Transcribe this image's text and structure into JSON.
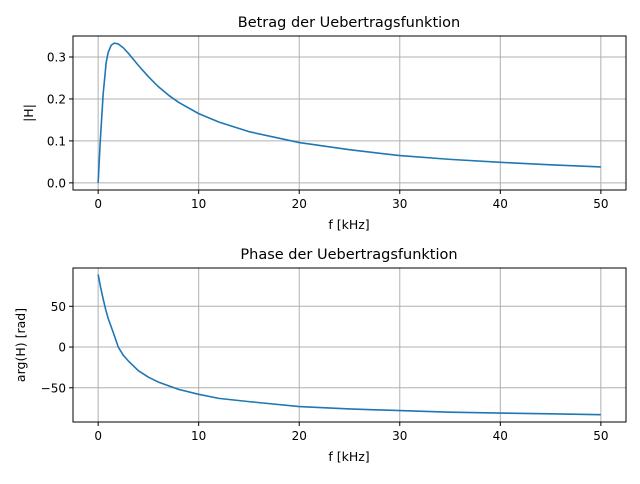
{
  "chart_data": [
    {
      "type": "line",
      "title": "Betrag der Uebertragsfunktion",
      "xlabel": "f [kHz]",
      "ylabel": "|H|",
      "xlim": [
        -2.5,
        52.5
      ],
      "ylim": [
        -0.017,
        0.35
      ],
      "xticks": [
        0,
        10,
        20,
        30,
        40,
        50
      ],
      "xtick_labels": [
        "0",
        "10",
        "20",
        "30",
        "40",
        "50"
      ],
      "yticks": [
        0.0,
        0.1,
        0.2,
        0.3
      ],
      "ytick_labels": [
        "0.0",
        "0.1",
        "0.2",
        "0.3"
      ],
      "grid": true,
      "series": [
        {
          "color": "#1f77b4",
          "x": [
            0,
            0.2,
            0.5,
            0.8,
            1.0,
            1.3,
            1.6,
            2.0,
            2.5,
            3.0,
            4.0,
            5.0,
            6.0,
            7.0,
            8.0,
            10,
            12,
            15,
            20,
            25,
            30,
            35,
            40,
            45,
            50
          ],
          "y": [
            0.0,
            0.095,
            0.212,
            0.287,
            0.311,
            0.328,
            0.333,
            0.331,
            0.322,
            0.309,
            0.28,
            0.253,
            0.229,
            0.209,
            0.192,
            0.165,
            0.145,
            0.122,
            0.096,
            0.079,
            0.065,
            0.056,
            0.049,
            0.043,
            0.038
          ]
        }
      ]
    },
    {
      "type": "line",
      "title": "Phase der Uebertragsfunktion",
      "xlabel": "f [kHz]",
      "ylabel": "arg(H) [rad]",
      "xlim": [
        -2.5,
        52.5
      ],
      "ylim": [
        -92,
        97
      ],
      "xticks": [
        0,
        10,
        20,
        30,
        40,
        50
      ],
      "xtick_labels": [
        "0",
        "10",
        "20",
        "30",
        "40",
        "50"
      ],
      "yticks": [
        -50,
        0,
        50
      ],
      "ytick_labels": [
        "−50",
        "0",
        "50"
      ],
      "grid": true,
      "series": [
        {
          "color": "#1f77b4",
          "x": [
            0,
            0.25,
            0.5,
            0.75,
            1.0,
            1.5,
            2.0,
            2.5,
            3.0,
            4.0,
            5.0,
            6.0,
            8.0,
            10,
            12,
            15,
            20,
            25,
            30,
            35,
            40,
            45,
            50
          ],
          "y": [
            89,
            73,
            59,
            46,
            35,
            18,
            0,
            -10,
            -17,
            -29,
            -37,
            -43,
            -52,
            -58,
            -63,
            -67,
            -73,
            -76,
            -78,
            -80,
            -81,
            -82,
            -83
          ]
        }
      ]
    }
  ]
}
